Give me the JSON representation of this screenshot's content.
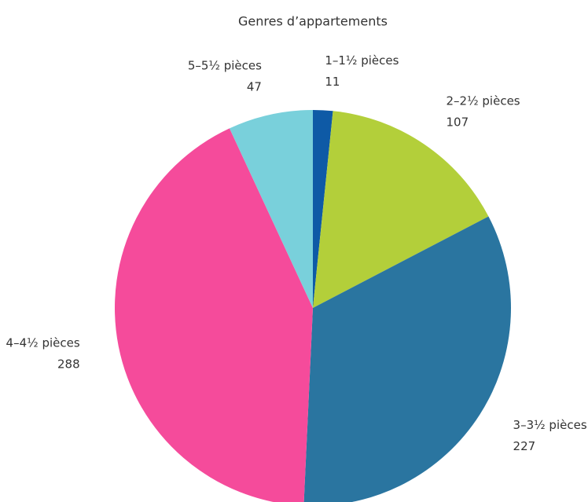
{
  "chart_data": {
    "type": "pie",
    "title": "Genres d’appartements",
    "categories": [
      "1–1½ pièces",
      "2–2½ pièces",
      "3–3½ pièces",
      "4–4½ pièces",
      "5–5½ pièces"
    ],
    "values": [
      11,
      107,
      227,
      288,
      47
    ],
    "colors": [
      "#0e5aa6",
      "#b3cf3a",
      "#2a75a0",
      "#f54b9b",
      "#79d0db"
    ]
  }
}
